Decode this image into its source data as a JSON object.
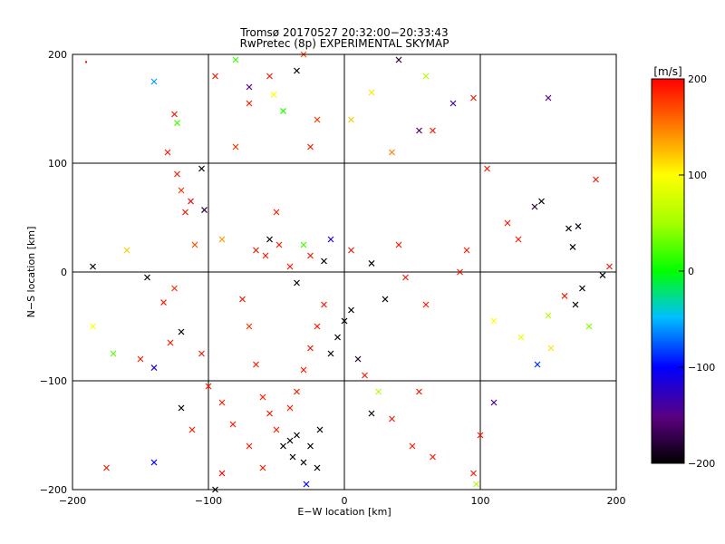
{
  "chart_data": {
    "type": "scatter",
    "title": "Tromsø 20170527 20:32:00−20:33:43",
    "subtitle": "RwPretec (8p) EXPERIMENTAL SKYMAP",
    "xlabel": "E−W location [km]",
    "ylabel": "N−S location [km]",
    "xlim": [
      -200,
      200
    ],
    "ylim": [
      -200,
      200
    ],
    "xticks": [
      -200,
      -100,
      0,
      100,
      200
    ],
    "yticks": [
      -200,
      -100,
      0,
      100,
      200
    ],
    "xtick_labels": [
      "−200",
      "−100",
      "0",
      "100",
      "200"
    ],
    "ytick_labels": [
      "−200",
      "−100",
      "0",
      "100",
      "200"
    ],
    "grid": true,
    "colorbar": {
      "label": "[m/s]",
      "range": [
        -200,
        200
      ],
      "ticks": [
        -200,
        -100,
        0,
        100,
        200
      ],
      "tick_labels": [
        "−200",
        "−100",
        "0",
        "100",
        "200"
      ],
      "colormap": "rainbow",
      "placement": "right"
    },
    "marker_types": [
      "dot",
      "cross"
    ],
    "points": [
      {
        "x": -190,
        "y": 193,
        "v": 200,
        "m": "dot"
      },
      {
        "x": -185,
        "y": 5,
        "v": -200,
        "m": "cross"
      },
      {
        "x": -160,
        "y": 20,
        "v": 120,
        "m": "cross"
      },
      {
        "x": -140,
        "y": 175,
        "v": -60,
        "m": "cross"
      },
      {
        "x": -130,
        "y": 110,
        "v": 190,
        "m": "cross"
      },
      {
        "x": -125,
        "y": 145,
        "v": 190,
        "m": "cross"
      },
      {
        "x": -123,
        "y": 137,
        "v": 20,
        "m": "cross"
      },
      {
        "x": -123,
        "y": 90,
        "v": 190,
        "m": "cross"
      },
      {
        "x": -120,
        "y": 75,
        "v": 180,
        "m": "cross"
      },
      {
        "x": -117,
        "y": 55,
        "v": 190,
        "m": "cross"
      },
      {
        "x": -113,
        "y": 65,
        "v": 200,
        "m": "cross"
      },
      {
        "x": -110,
        "y": 25,
        "v": 170,
        "m": "cross"
      },
      {
        "x": -105,
        "y": 95,
        "v": -200,
        "m": "cross"
      },
      {
        "x": -103,
        "y": 57,
        "v": -180,
        "m": "cross"
      },
      {
        "x": -95,
        "y": 180,
        "v": 190,
        "m": "cross"
      },
      {
        "x": -90,
        "y": 30,
        "v": 140,
        "m": "cross"
      },
      {
        "x": -80,
        "y": 195,
        "v": 20,
        "m": "cross"
      },
      {
        "x": -80,
        "y": 115,
        "v": 180,
        "m": "cross"
      },
      {
        "x": -70,
        "y": 155,
        "v": 190,
        "m": "cross"
      },
      {
        "x": -70,
        "y": 170,
        "v": -150,
        "m": "cross"
      },
      {
        "x": -55,
        "y": 180,
        "v": 190,
        "m": "cross"
      },
      {
        "x": -52,
        "y": 163,
        "v": 100,
        "m": "cross"
      },
      {
        "x": -50,
        "y": 55,
        "v": 190,
        "m": "cross"
      },
      {
        "x": -45,
        "y": 148,
        "v": 10,
        "m": "cross"
      },
      {
        "x": -35,
        "y": 185,
        "v": -200,
        "m": "cross"
      },
      {
        "x": -30,
        "y": 200,
        "v": 170,
        "m": "cross"
      },
      {
        "x": -25,
        "y": 115,
        "v": 190,
        "m": "cross"
      },
      {
        "x": -20,
        "y": 140,
        "v": 180,
        "m": "cross"
      },
      {
        "x": 5,
        "y": 140,
        "v": 120,
        "m": "cross"
      },
      {
        "x": 20,
        "y": 165,
        "v": 110,
        "m": "cross"
      },
      {
        "x": 35,
        "y": 110,
        "v": 150,
        "m": "cross"
      },
      {
        "x": 40,
        "y": 195,
        "v": -180,
        "m": "cross"
      },
      {
        "x": 55,
        "y": 130,
        "v": -160,
        "m": "cross"
      },
      {
        "x": 60,
        "y": 180,
        "v": 60,
        "m": "cross"
      },
      {
        "x": 65,
        "y": 130,
        "v": 190,
        "m": "cross"
      },
      {
        "x": 80,
        "y": 155,
        "v": -140,
        "m": "cross"
      },
      {
        "x": 95,
        "y": 160,
        "v": 190,
        "m": "cross"
      },
      {
        "x": 105,
        "y": 95,
        "v": 190,
        "m": "cross"
      },
      {
        "x": 120,
        "y": 45,
        "v": 190,
        "m": "cross"
      },
      {
        "x": 128,
        "y": 30,
        "v": 190,
        "m": "cross"
      },
      {
        "x": 140,
        "y": 60,
        "v": -180,
        "m": "cross"
      },
      {
        "x": 145,
        "y": 65,
        "v": -200,
        "m": "cross"
      },
      {
        "x": 150,
        "y": 160,
        "v": -150,
        "m": "cross"
      },
      {
        "x": 165,
        "y": 40,
        "v": -200,
        "m": "cross"
      },
      {
        "x": 168,
        "y": 23,
        "v": -200,
        "m": "cross"
      },
      {
        "x": 172,
        "y": 42,
        "v": -190,
        "m": "cross"
      },
      {
        "x": 185,
        "y": 85,
        "v": 190,
        "m": "cross"
      },
      {
        "x": 195,
        "y": 5,
        "v": 190,
        "m": "cross"
      },
      {
        "x": 190,
        "y": -3,
        "v": -200,
        "m": "cross"
      },
      {
        "x": 175,
        "y": -15,
        "v": -200,
        "m": "cross"
      },
      {
        "x": 170,
        "y": -30,
        "v": -200,
        "m": "cross"
      },
      {
        "x": 162,
        "y": -22,
        "v": 190,
        "m": "cross"
      },
      {
        "x": 180,
        "y": -50,
        "v": 40,
        "m": "cross"
      },
      {
        "x": 152,
        "y": -70,
        "v": 110,
        "m": "cross"
      },
      {
        "x": 142,
        "y": -85,
        "v": -90,
        "m": "cross"
      },
      {
        "x": 150,
        "y": -40,
        "v": 60,
        "m": "cross"
      },
      {
        "x": 130,
        "y": -60,
        "v": 90,
        "m": "cross"
      },
      {
        "x": 110,
        "y": -45,
        "v": 100,
        "m": "cross"
      },
      {
        "x": -185,
        "y": -50,
        "v": 100,
        "m": "cross"
      },
      {
        "x": -170,
        "y": -75,
        "v": 30,
        "m": "cross"
      },
      {
        "x": -150,
        "y": -80,
        "v": 190,
        "m": "cross"
      },
      {
        "x": -145,
        "y": -5,
        "v": -200,
        "m": "cross"
      },
      {
        "x": -140,
        "y": -88,
        "v": -120,
        "m": "cross"
      },
      {
        "x": -133,
        "y": -28,
        "v": 190,
        "m": "cross"
      },
      {
        "x": -125,
        "y": -15,
        "v": 180,
        "m": "cross"
      },
      {
        "x": -120,
        "y": -125,
        "v": -200,
        "m": "cross"
      },
      {
        "x": -112,
        "y": -145,
        "v": 190,
        "m": "cross"
      },
      {
        "x": -105,
        "y": -75,
        "v": 190,
        "m": "cross"
      },
      {
        "x": -100,
        "y": -105,
        "v": 190,
        "m": "cross"
      },
      {
        "x": -95,
        "y": -200,
        "v": -200,
        "m": "cross"
      },
      {
        "x": -90,
        "y": -185,
        "v": 200,
        "m": "cross"
      },
      {
        "x": -140,
        "y": -175,
        "v": -100,
        "m": "cross"
      },
      {
        "x": -175,
        "y": -180,
        "v": 190,
        "m": "cross"
      },
      {
        "x": -75,
        "y": -25,
        "v": 190,
        "m": "cross"
      },
      {
        "x": -70,
        "y": -50,
        "v": 180,
        "m": "cross"
      },
      {
        "x": -65,
        "y": -85,
        "v": 190,
        "m": "cross"
      },
      {
        "x": -60,
        "y": -115,
        "v": 190,
        "m": "cross"
      },
      {
        "x": -55,
        "y": -130,
        "v": 190,
        "m": "cross"
      },
      {
        "x": -50,
        "y": -145,
        "v": 190,
        "m": "cross"
      },
      {
        "x": -45,
        "y": -160,
        "v": -200,
        "m": "cross"
      },
      {
        "x": -40,
        "y": -155,
        "v": -200,
        "m": "cross"
      },
      {
        "x": -38,
        "y": -170,
        "v": -200,
        "m": "cross"
      },
      {
        "x": -35,
        "y": -150,
        "v": -200,
        "m": "cross"
      },
      {
        "x": -30,
        "y": -175,
        "v": -200,
        "m": "cross"
      },
      {
        "x": -25,
        "y": -160,
        "v": -200,
        "m": "cross"
      },
      {
        "x": -20,
        "y": -180,
        "v": -200,
        "m": "cross"
      },
      {
        "x": -18,
        "y": -145,
        "v": -200,
        "m": "cross"
      },
      {
        "x": -28,
        "y": -195,
        "v": -100,
        "m": "cross"
      },
      {
        "x": -40,
        "y": -125,
        "v": 190,
        "m": "cross"
      },
      {
        "x": -35,
        "y": -110,
        "v": 190,
        "m": "cross"
      },
      {
        "x": -30,
        "y": -90,
        "v": 190,
        "m": "cross"
      },
      {
        "x": -25,
        "y": -70,
        "v": 190,
        "m": "cross"
      },
      {
        "x": -20,
        "y": -50,
        "v": 190,
        "m": "cross"
      },
      {
        "x": -15,
        "y": -30,
        "v": 190,
        "m": "cross"
      },
      {
        "x": -10,
        "y": -75,
        "v": -200,
        "m": "cross"
      },
      {
        "x": -5,
        "y": -60,
        "v": -200,
        "m": "cross"
      },
      {
        "x": 0,
        "y": -45,
        "v": -200,
        "m": "cross"
      },
      {
        "x": 5,
        "y": -35,
        "v": -200,
        "m": "cross"
      },
      {
        "x": 10,
        "y": -80,
        "v": -180,
        "m": "cross"
      },
      {
        "x": 15,
        "y": -95,
        "v": 190,
        "m": "cross"
      },
      {
        "x": 20,
        "y": -130,
        "v": -200,
        "m": "cross"
      },
      {
        "x": 25,
        "y": -110,
        "v": 60,
        "m": "cross"
      },
      {
        "x": 35,
        "y": -135,
        "v": 190,
        "m": "cross"
      },
      {
        "x": 55,
        "y": -110,
        "v": 190,
        "m": "cross"
      },
      {
        "x": 50,
        "y": -160,
        "v": 190,
        "m": "cross"
      },
      {
        "x": 65,
        "y": -170,
        "v": 190,
        "m": "cross"
      },
      {
        "x": 100,
        "y": -150,
        "v": 190,
        "m": "cross"
      },
      {
        "x": 110,
        "y": -120,
        "v": -140,
        "m": "cross"
      },
      {
        "x": 95,
        "y": -185,
        "v": 190,
        "m": "cross"
      },
      {
        "x": 97,
        "y": -195,
        "v": 60,
        "m": "cross"
      },
      {
        "x": -65,
        "y": 20,
        "v": 190,
        "m": "cross"
      },
      {
        "x": -58,
        "y": 15,
        "v": 190,
        "m": "cross"
      },
      {
        "x": -55,
        "y": 30,
        "v": -200,
        "m": "cross"
      },
      {
        "x": -48,
        "y": 25,
        "v": 190,
        "m": "cross"
      },
      {
        "x": -40,
        "y": 5,
        "v": 190,
        "m": "cross"
      },
      {
        "x": -35,
        "y": -10,
        "v": -200,
        "m": "cross"
      },
      {
        "x": -30,
        "y": 25,
        "v": 20,
        "m": "cross"
      },
      {
        "x": -25,
        "y": 15,
        "v": 190,
        "m": "cross"
      },
      {
        "x": -15,
        "y": 10,
        "v": -200,
        "m": "cross"
      },
      {
        "x": -10,
        "y": 30,
        "v": -120,
        "m": "cross"
      },
      {
        "x": 5,
        "y": 20,
        "v": 190,
        "m": "cross"
      },
      {
        "x": 20,
        "y": 8,
        "v": -200,
        "m": "cross"
      },
      {
        "x": 30,
        "y": -25,
        "v": -200,
        "m": "cross"
      },
      {
        "x": 40,
        "y": 25,
        "v": 190,
        "m": "cross"
      },
      {
        "x": 45,
        "y": -5,
        "v": 190,
        "m": "cross"
      },
      {
        "x": 60,
        "y": -30,
        "v": 190,
        "m": "cross"
      },
      {
        "x": 85,
        "y": 0,
        "v": 190,
        "m": "cross"
      },
      {
        "x": 90,
        "y": 20,
        "v": 190,
        "m": "cross"
      },
      {
        "x": -120,
        "y": -55,
        "v": -200,
        "m": "cross"
      },
      {
        "x": -128,
        "y": -65,
        "v": 190,
        "m": "cross"
      },
      {
        "x": -90,
        "y": -120,
        "v": 190,
        "m": "cross"
      },
      {
        "x": -82,
        "y": -140,
        "v": 190,
        "m": "cross"
      },
      {
        "x": -70,
        "y": -160,
        "v": 190,
        "m": "cross"
      },
      {
        "x": -60,
        "y": -180,
        "v": 190,
        "m": "cross"
      }
    ]
  }
}
